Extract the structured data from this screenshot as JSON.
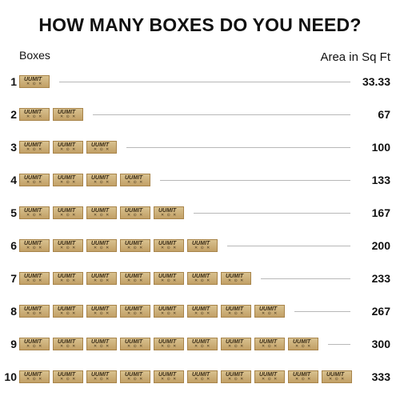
{
  "title": "HOW MANY BOXES DO YOU NEED?",
  "columns": {
    "left": "Boxes",
    "right": "Area in Sq Ft"
  },
  "box": {
    "logo": "UUMIT",
    "marks": "✕ ⊙ ✕"
  },
  "rows": [
    {
      "num": "1",
      "count": 1,
      "area": "33.33"
    },
    {
      "num": "2",
      "count": 2,
      "area": "67"
    },
    {
      "num": "3",
      "count": 3,
      "area": "100"
    },
    {
      "num": "4",
      "count": 4,
      "area": "133"
    },
    {
      "num": "5",
      "count": 5,
      "area": "167"
    },
    {
      "num": "6",
      "count": 6,
      "area": "200"
    },
    {
      "num": "7",
      "count": 7,
      "area": "233"
    },
    {
      "num": "8",
      "count": 8,
      "area": "267"
    },
    {
      "num": "9",
      "count": 9,
      "area": "300"
    },
    {
      "num": "10",
      "count": 10,
      "area": "333"
    }
  ]
}
